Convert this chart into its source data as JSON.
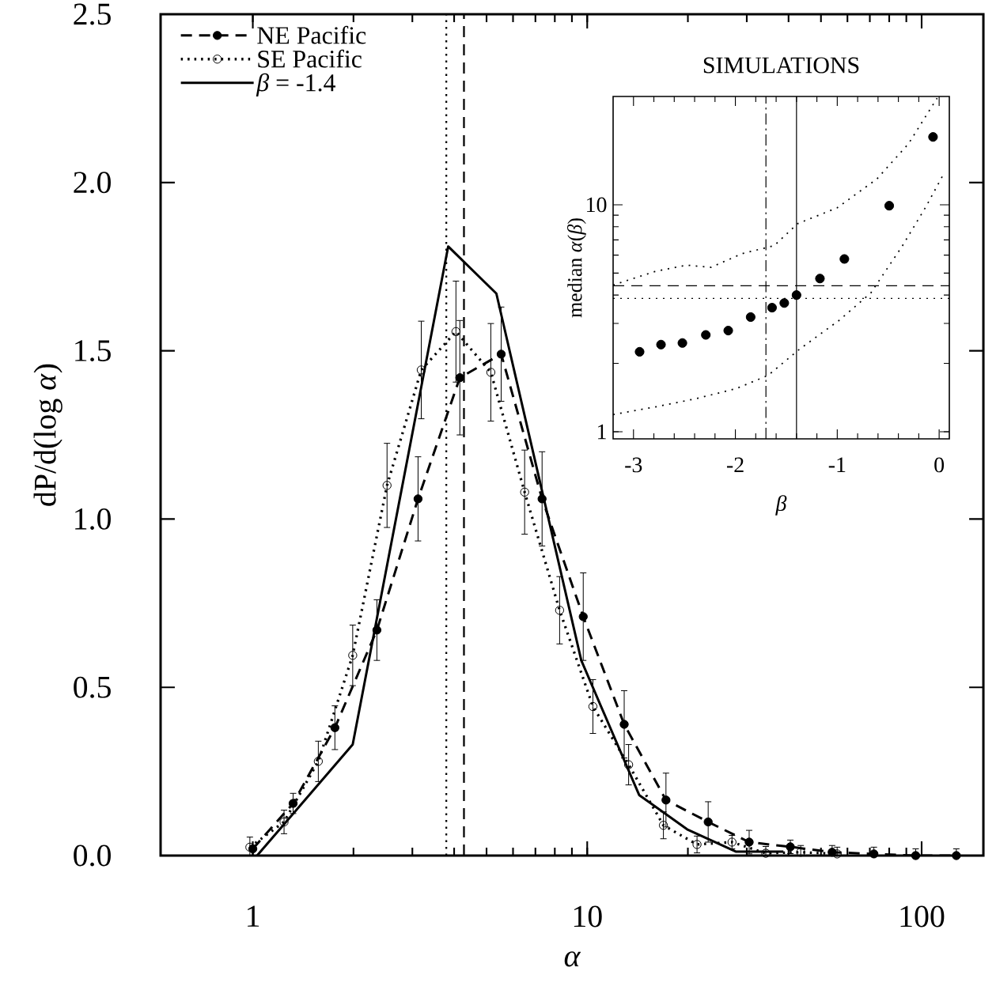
{
  "chart_data": [
    {
      "type": "line",
      "xlabel": "α",
      "ylabel": "dP/d(log *α*)",
      "log": "x",
      "legend": "top left",
      "xlim": [
        0.53,
        153
      ],
      "ylim": [
        0,
        2.5
      ],
      "xticks": [
        1,
        10,
        100
      ],
      "yticks": [
        {
          "value": 0,
          "label": "0.0"
        },
        {
          "value": 0.5,
          "label": "0.5"
        },
        {
          "value": 1,
          "label": "1.0"
        },
        {
          "value": 1.5,
          "label": "1.5"
        },
        {
          "value": 2,
          "label": "2.0"
        },
        {
          "value": 2.5,
          "label": "2.5"
        }
      ],
      "series": [
        {
          "name": "NE Pacific",
          "color": "#000000",
          "marker": "circle",
          "line_style": "dashed",
          "x": [
            1.0,
            1.32,
            1.76,
            2.35,
            3.12,
            4.16,
            5.53,
            7.33,
            9.73,
            12.9,
            17.2,
            23.0,
            30.5,
            40.5,
            54,
            72,
            96,
            127
          ],
          "values": [
            0.02,
            0.155,
            0.38,
            0.67,
            1.06,
            1.42,
            1.49,
            1.06,
            0.71,
            0.39,
            0.165,
            0.1,
            0.04,
            0.026,
            0.01,
            0.005,
            0,
            0
          ],
          "errors": [
            null,
            0.03,
            0.065,
            0.09,
            0.125,
            0.17,
            0.14,
            0.14,
            0.13,
            0.1,
            0.08,
            0.06,
            0.035,
            0.02,
            0.02,
            0.02,
            0.02,
            0.02
          ]
        },
        {
          "name": "SE Pacific",
          "color": "#000000",
          "marker": "circle",
          "line_style": "dotted",
          "x": [
            0.98,
            1.24,
            1.57,
            1.99,
            2.52,
            3.19,
            4.05,
            5.15,
            6.5,
            8.27,
            10.4,
            13.3,
            16.9,
            21.3,
            27.1,
            34.2,
            43.5,
            55.9
          ],
          "values": [
            0.025,
            0.1,
            0.28,
            0.595,
            1.1,
            1.443,
            1.557,
            1.436,
            1.08,
            0.729,
            0.443,
            0.27,
            0.09,
            0.033,
            0.04,
            0.007,
            0.01,
            0.005
          ],
          "errors": [
            0.03,
            0.035,
            0.06,
            0.09,
            0.125,
            0.145,
            0.15,
            0.145,
            0.125,
            0.1,
            0.08,
            0.06,
            0.04,
            0.025,
            0.02,
            0.02,
            0.02,
            0.02
          ]
        },
        {
          "name": "*β* = -1.4",
          "color": "#000000",
          "marker": "none",
          "line_style": "solid",
          "x": [
            1.03,
            1.99,
            3.84,
            5.35,
            9.6,
            14.3,
            19.9,
            27.8,
            38.6
          ],
          "values": [
            0,
            0.33,
            1.81,
            1.67,
            0.58,
            0.18,
            0.078,
            0.012,
            0.012
          ]
        }
      ],
      "ref_lines": [
        {
          "axis": "x",
          "value": 3.79,
          "line_style": "dotted"
        },
        {
          "axis": "x",
          "value": 4.28,
          "line_style": "dashed"
        }
      ]
    },
    {
      "type": "scatter",
      "title": "SIMULATIONS",
      "xlabel": "β",
      "ylabel": "median *α*(*β*)",
      "log": "y",
      "xlim": [
        -3.2,
        0.1
      ],
      "ylim": [
        0.93,
        30
      ],
      "xticks": [
        -3,
        -2,
        -1,
        0
      ],
      "yticks": [
        1,
        10
      ],
      "series": [
        {
          "color": "#000000",
          "marker": "circle",
          "line_style": "none",
          "x": [
            -2.94,
            -2.73,
            -2.52,
            -2.29,
            -2.07,
            -1.85,
            -1.64,
            -1.52,
            -1.4,
            -1.17,
            -0.93,
            -0.49,
            -0.06
          ],
          "values": [
            2.25,
            2.42,
            2.46,
            2.67,
            2.79,
            3.2,
            3.52,
            3.69,
            4.0,
            4.73,
            5.77,
            9.9,
            19.9
          ]
        },
        {
          "type": "line",
          "color": "#000000",
          "marker": "none",
          "line_style": "dotted",
          "x": [
            -3.2,
            -2.79,
            -2.48,
            -2.24,
            -1.93,
            -1.62,
            -1.39,
            -1.0,
            -0.61,
            -0.3,
            -0.02
          ],
          "values": [
            4.43,
            5.08,
            5.42,
            5.3,
            6.1,
            6.6,
            8.25,
            9.7,
            13.0,
            18.6,
            29.5
          ]
        },
        {
          "type": "line",
          "color": "#000000",
          "marker": "none",
          "line_style": "dotted",
          "x": [
            -3.2,
            -2.77,
            -2.38,
            -1.99,
            -1.68,
            -1.37,
            -0.98,
            -0.67,
            -0.36,
            -0.13,
            0.03
          ],
          "values": [
            1.19,
            1.29,
            1.4,
            1.55,
            1.77,
            2.31,
            3.1,
            4.09,
            6.6,
            9.8,
            13.3
          ]
        }
      ],
      "ref_lines": [
        {
          "axis": "y",
          "value": 4.4,
          "line_style": "dashed"
        },
        {
          "axis": "y",
          "value": 3.87,
          "line_style": "dotted"
        },
        {
          "axis": "x",
          "value": -1.7,
          "line_style": "dashdot"
        },
        {
          "axis": "x",
          "value": -1.4,
          "line_style": "solid"
        }
      ]
    }
  ]
}
